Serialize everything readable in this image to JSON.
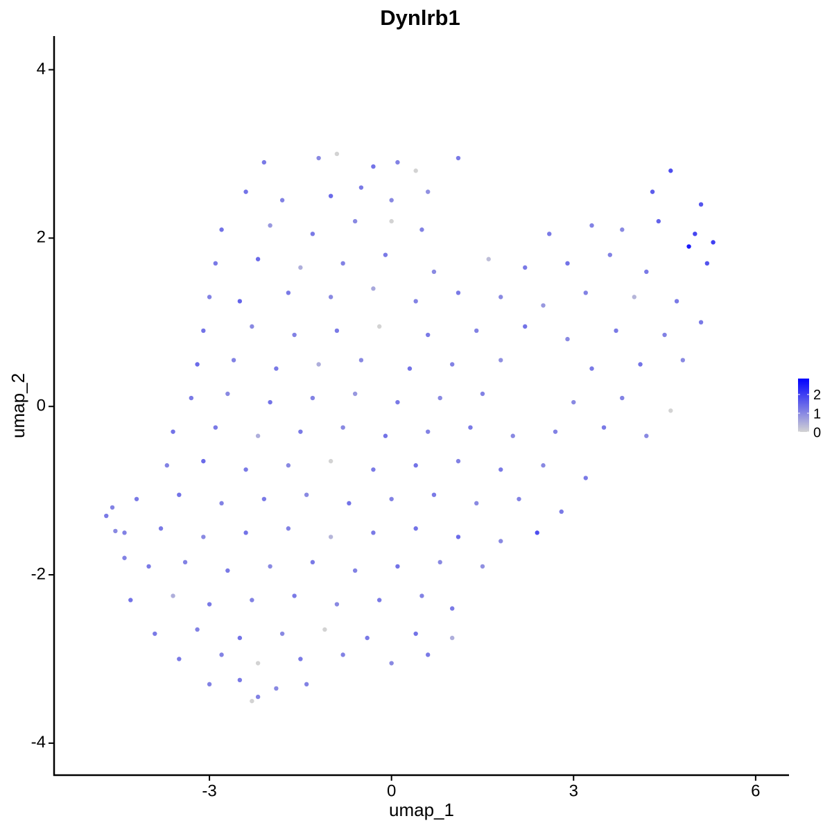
{
  "chart_data": {
    "type": "scatter",
    "title": "Dynlrb1",
    "xlabel": "umap_1",
    "ylabel": "umap_2",
    "xlim": [
      -5.56,
      6.55
    ],
    "ylim": [
      -4.38,
      4.4
    ],
    "xticks": [
      -3,
      0,
      3,
      6
    ],
    "yticks": [
      -4,
      -2,
      0,
      2,
      4
    ],
    "color_low": "#d3d3d3",
    "color_high": "#0000ff",
    "clim": [
      0,
      2.85
    ],
    "cticks": [
      0,
      1,
      2
    ],
    "x": [
      -2.1,
      -1.2,
      -0.9,
      -0.3,
      0.1,
      0.4,
      1.1,
      -2.4,
      -1.8,
      -1.0,
      -0.5,
      0.0,
      0.6,
      4.3,
      4.6,
      5.1,
      -2.8,
      -2.0,
      -1.3,
      -0.6,
      0.0,
      0.5,
      2.6,
      3.3,
      3.8,
      4.4,
      5.0,
      5.3,
      -2.9,
      -2.2,
      -1.5,
      -0.8,
      -0.1,
      0.7,
      1.6,
      2.2,
      2.9,
      3.6,
      4.2,
      4.9,
      5.2,
      -3.0,
      -2.5,
      -1.7,
      -1.0,
      -0.3,
      0.4,
      1.1,
      1.8,
      2.5,
      3.2,
      4.0,
      4.7,
      -3.1,
      -2.3,
      -1.6,
      -0.9,
      -0.2,
      0.6,
      1.4,
      2.2,
      2.9,
      3.7,
      4.5,
      5.1,
      -3.2,
      -2.6,
      -1.9,
      -1.2,
      -0.5,
      0.3,
      1.0,
      1.8,
      3.3,
      4.1,
      4.8,
      -3.3,
      -2.7,
      -2.0,
      -1.3,
      -0.6,
      0.1,
      0.8,
      1.5,
      3.0,
      3.8,
      4.6,
      -3.6,
      -2.9,
      -2.2,
      -1.5,
      -0.8,
      -0.1,
      0.6,
      1.3,
      2.0,
      2.7,
      3.5,
      4.2,
      -3.7,
      -3.1,
      -2.4,
      -1.7,
      -1.0,
      -0.3,
      0.4,
      1.1,
      1.8,
      2.5,
      3.2,
      -4.2,
      -3.5,
      -2.8,
      -2.1,
      -1.4,
      -0.7,
      0.0,
      0.7,
      1.4,
      2.1,
      2.8,
      -4.4,
      -3.8,
      -3.1,
      -2.4,
      -1.7,
      -1.0,
      -0.3,
      0.4,
      1.1,
      1.8,
      2.4,
      -4.0,
      -3.4,
      -2.7,
      -2.0,
      -1.3,
      -0.6,
      0.1,
      0.8,
      1.5,
      -4.3,
      -3.6,
      -3.0,
      -2.3,
      -1.6,
      -0.9,
      -0.2,
      0.5,
      1.0,
      -3.9,
      -3.2,
      -2.5,
      -1.8,
      -1.1,
      -0.4,
      0.4,
      1.0,
      -3.5,
      -2.8,
      -2.2,
      -1.5,
      -0.8,
      0.0,
      0.6,
      -3.0,
      -2.5,
      -1.9,
      -1.4,
      -2.3,
      -2.2,
      -4.7,
      -4.6,
      -4.55,
      -4.4
    ],
    "y": [
      2.9,
      2.95,
      3.0,
      2.85,
      2.9,
      2.8,
      2.95,
      2.55,
      2.45,
      2.5,
      2.6,
      2.45,
      2.55,
      2.55,
      2.8,
      2.4,
      2.1,
      2.15,
      2.05,
      2.2,
      2.2,
      2.1,
      2.05,
      2.15,
      2.1,
      2.2,
      2.05,
      1.95,
      1.7,
      1.75,
      1.65,
      1.7,
      1.8,
      1.6,
      1.75,
      1.65,
      1.7,
      1.8,
      1.6,
      1.9,
      1.7,
      1.3,
      1.25,
      1.35,
      1.3,
      1.4,
      1.25,
      1.35,
      1.3,
      1.2,
      1.35,
      1.3,
      1.25,
      0.9,
      0.95,
      0.85,
      0.9,
      0.95,
      0.85,
      0.9,
      0.95,
      0.8,
      0.9,
      0.85,
      1.0,
      0.5,
      0.55,
      0.45,
      0.5,
      0.55,
      0.45,
      0.5,
      0.55,
      0.45,
      0.5,
      0.55,
      0.1,
      0.15,
      0.05,
      0.1,
      0.15,
      0.05,
      0.1,
      0.15,
      0.05,
      0.1,
      -0.05,
      -0.3,
      -0.25,
      -0.35,
      -0.3,
      -0.25,
      -0.35,
      -0.3,
      -0.25,
      -0.35,
      -0.3,
      -0.25,
      -0.35,
      -0.7,
      -0.65,
      -0.75,
      -0.7,
      -0.65,
      -0.75,
      -0.7,
      -0.65,
      -0.75,
      -0.7,
      -0.85,
      -1.1,
      -1.05,
      -1.15,
      -1.1,
      -1.05,
      -1.15,
      -1.1,
      -1.05,
      -1.15,
      -1.1,
      -1.25,
      -1.5,
      -1.45,
      -1.55,
      -1.5,
      -1.45,
      -1.55,
      -1.5,
      -1.45,
      -1.55,
      -1.6,
      -1.5,
      -1.9,
      -1.85,
      -1.95,
      -1.9,
      -1.85,
      -1.95,
      -1.9,
      -1.85,
      -1.9,
      -2.3,
      -2.25,
      -2.35,
      -2.3,
      -2.25,
      -2.35,
      -2.3,
      -2.25,
      -2.4,
      -2.7,
      -2.65,
      -2.75,
      -2.7,
      -2.65,
      -2.75,
      -2.7,
      -2.75,
      -3.0,
      -2.95,
      -3.05,
      -3.0,
      -2.95,
      -3.05,
      -2.95,
      -3.3,
      -3.25,
      -3.35,
      -3.3,
      -3.5,
      -3.45,
      -1.3,
      -1.2,
      -1.48,
      -1.8
    ],
    "values": [
      1.2,
      1.0,
      0,
      1.3,
      1.1,
      0,
      1.2,
      1.3,
      1.1,
      1.4,
      1.2,
      1.0,
      0.9,
      1.6,
      1.8,
      1.7,
      1.3,
      0.8,
      1.2,
      1.0,
      0,
      1.1,
      1.2,
      1.1,
      1.0,
      1.5,
      1.9,
      2.0,
      1.2,
      1.4,
      0.5,
      1.1,
      1.2,
      1.0,
      0.3,
      1.2,
      1.3,
      1.1,
      1.2,
      2.5,
      1.7,
      1.1,
      1.5,
      1.2,
      1.0,
      0.6,
      1.1,
      1.2,
      1.0,
      0.8,
      1.1,
      0.4,
      1.2,
      1.3,
      1.0,
      1.1,
      1.2,
      0,
      1.2,
      1.1,
      1.3,
      1.0,
      1.2,
      1.1,
      1.2,
      1.4,
      1.1,
      1.2,
      0.5,
      1.0,
      1.3,
      1.1,
      0.9,
      1.2,
      1.3,
      1.0,
      1.2,
      1.0,
      1.3,
      1.1,
      0.8,
      1.2,
      1.0,
      1.1,
      1.0,
      1.1,
      0,
      1.3,
      1.2,
      0.5,
      1.2,
      1.0,
      1.3,
      1.1,
      1.2,
      1.0,
      1.1,
      1.2,
      1.0,
      1.1,
      1.4,
      1.2,
      1.0,
      0,
      1.2,
      1.3,
      1.1,
      1.2,
      1.0,
      1.2,
      1.2,
      1.3,
      1.1,
      1.2,
      1.0,
      1.3,
      1.1,
      1.2,
      1.0,
      1.1,
      1.2,
      1.1,
      1.2,
      1.0,
      1.3,
      1.1,
      0.4,
      1.2,
      1.3,
      1.4,
      1.0,
      1.8,
      1.2,
      1.1,
      1.2,
      1.0,
      1.2,
      1.1,
      1.3,
      1.0,
      0.9,
      1.3,
      0.5,
      1.2,
      1.1,
      1.2,
      1.0,
      1.2,
      1.1,
      1.2,
      1.2,
      1.1,
      1.3,
      1.0,
      0,
      1.2,
      1.3,
      0.5,
      1.2,
      1.1,
      0,
      1.2,
      1.1,
      1.0,
      1.2,
      1.1,
      1.2,
      1.0,
      1.1,
      0,
      1.1,
      1.2,
      1.1,
      1.0,
      1.1
    ]
  }
}
